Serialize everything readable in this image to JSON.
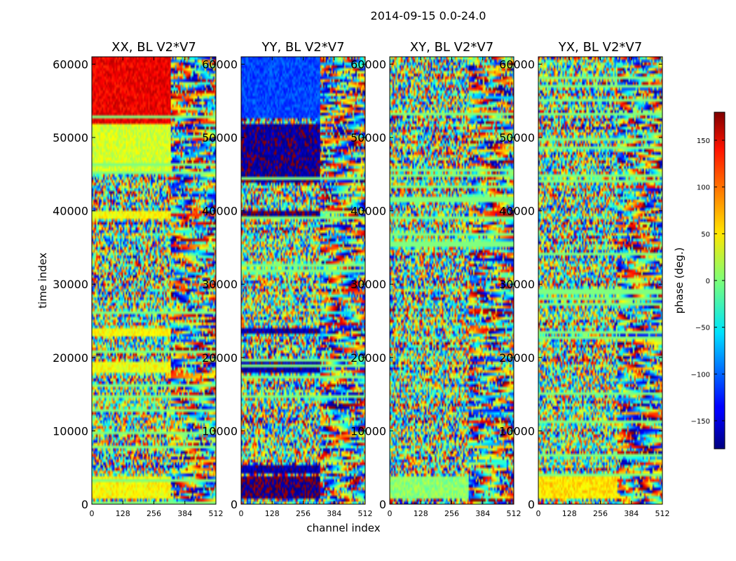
{
  "chart_data": {
    "type": "heatmap",
    "suptitle": "2014-09-15 0.0-24.0",
    "xlabel": "channel index",
    "ylabel": "time index",
    "colorbar": {
      "label": "phase (deg.)",
      "range": [
        -180,
        180
      ],
      "ticks": [
        -150,
        -100,
        -50,
        0,
        50,
        100,
        150
      ],
      "tick_labels": [
        "−150",
        "−100",
        "−50",
        "0",
        "50",
        "100",
        "150"
      ],
      "colormap": "jet"
    },
    "x_ticks": [
      0,
      128,
      256,
      384,
      512
    ],
    "y_ticks": [
      0,
      10000,
      20000,
      30000,
      40000,
      50000,
      60000
    ],
    "xlim": [
      0,
      512
    ],
    "ylim": [
      0,
      61000
    ],
    "panels": [
      {
        "title": "XX, BL V2*V7",
        "bands": [
          {
            "range": [
              700,
              4000
            ],
            "phase": 45
          },
          {
            "range": [
              45500,
              52000
            ],
            "phase": 30
          },
          {
            "range": [
              52000,
              61000
            ],
            "phase": 140
          },
          {
            "range": [
              18000,
              19500
            ],
            "phase": 40
          },
          {
            "range": [
              22800,
              24000
            ],
            "phase": 45
          },
          {
            "range": [
              39000,
              40000
            ],
            "phase": 45
          }
        ]
      },
      {
        "title": "YY, BL V2*V7",
        "bands": [
          {
            "range": [
              700,
              4000
            ],
            "phase": -175
          },
          {
            "range": [
              4200,
              5300
            ],
            "phase": -165
          },
          {
            "range": [
              18000,
              19500
            ],
            "phase": -165
          },
          {
            "range": [
              23400,
              24000
            ],
            "phase": -165
          },
          {
            "range": [
              39000,
              40000
            ],
            "phase": -175
          },
          {
            "range": [
              44000,
              52000
            ],
            "phase": -170
          },
          {
            "range": [
              52500,
              61000
            ],
            "phase": -110
          }
        ]
      },
      {
        "title": "XY, BL V2*V7",
        "bands": [
          {
            "range": [
              700,
              4000
            ],
            "phase": 5
          }
        ]
      },
      {
        "title": "YX, BL V2*V7",
        "bands": [
          {
            "range": [
              700,
              4000
            ],
            "phase": 55
          }
        ]
      }
    ]
  }
}
